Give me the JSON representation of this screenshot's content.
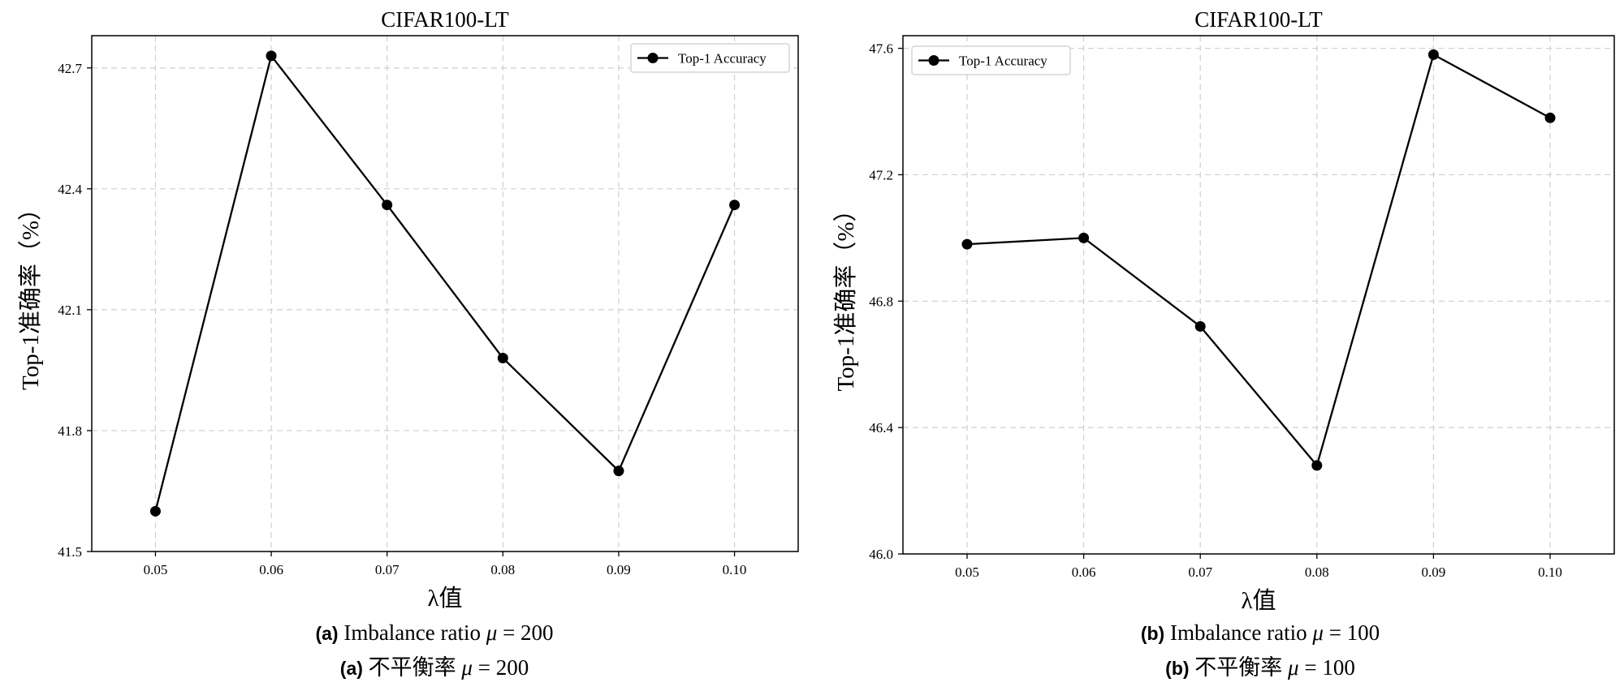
{
  "chart_data": [
    {
      "type": "line",
      "title": "CIFAR100-LT",
      "xlabel": "λ值",
      "ylabel": "Top-1准确率（%）",
      "categories": [
        "0.05",
        "0.06",
        "0.07",
        "0.08",
        "0.09",
        "0.10"
      ],
      "x": [
        0.05,
        0.06,
        0.07,
        0.08,
        0.09,
        0.1
      ],
      "series": [
        {
          "name": "Top-1 Accuracy",
          "values": [
            41.6,
            42.73,
            42.36,
            41.98,
            41.7,
            42.36
          ],
          "color": "#000000"
        }
      ],
      "xlim": [
        0.0445,
        0.1055
      ],
      "ylim": [
        41.5,
        42.78
      ],
      "yticks": [
        41.5,
        41.8,
        42.1,
        42.4,
        42.7
      ],
      "ytick_labels": [
        "41.5",
        "41.8",
        "42.1",
        "42.4",
        "42.7"
      ],
      "grid": true,
      "legend": "top-right",
      "caption": {
        "label": "(a)",
        "en_prefix": "Imbalance ratio",
        "zh_prefix": "不平衡率",
        "mu_symbol": "μ",
        "mu_value": "= 200"
      }
    },
    {
      "type": "line",
      "title": "CIFAR100-LT",
      "xlabel": "λ值",
      "ylabel": "Top-1准确率（%）",
      "categories": [
        "0.05",
        "0.06",
        "0.07",
        "0.08",
        "0.09",
        "0.10"
      ],
      "x": [
        0.05,
        0.06,
        0.07,
        0.08,
        0.09,
        0.1
      ],
      "series": [
        {
          "name": "Top-1 Accuracy",
          "values": [
            46.98,
            47.0,
            46.72,
            46.28,
            47.58,
            47.38
          ],
          "color": "#000000"
        }
      ],
      "xlim": [
        0.0445,
        0.1055
      ],
      "ylim": [
        46.0,
        47.64
      ],
      "yticks": [
        46.0,
        46.4,
        46.8,
        47.2,
        47.6
      ],
      "ytick_labels": [
        "46.0",
        "46.4",
        "46.8",
        "47.2",
        "47.6"
      ],
      "grid": true,
      "legend": "top-left",
      "caption": {
        "label": "(b)",
        "en_prefix": "Imbalance ratio",
        "zh_prefix": "不平衡率",
        "mu_symbol": "μ",
        "mu_value": "= 100"
      }
    }
  ]
}
